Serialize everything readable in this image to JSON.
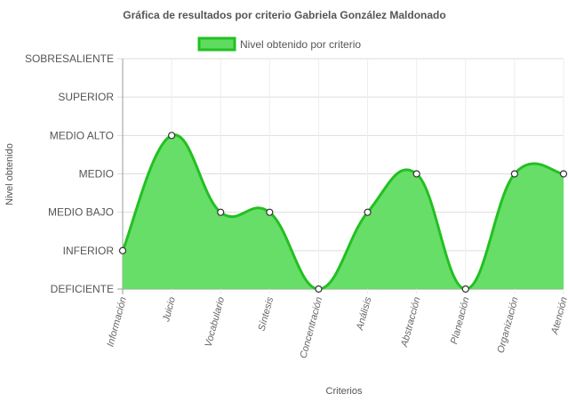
{
  "chart_data": {
    "type": "area",
    "title": "Gráfica de resultados por criterio Gabriela González Maldonado",
    "xlabel": "Criterios",
    "ylabel": "Nivel obtenido",
    "categories": [
      "Información",
      "Juicio",
      "Vocabulario",
      "Síntesis",
      "Concentración",
      "Análisis",
      "Abstracción",
      "Planeación",
      "Organización",
      "Atención"
    ],
    "y_levels": [
      "DEFICIENTE",
      "INFERIOR",
      "MEDIO BAJO",
      "MEDIO",
      "MEDIO ALTO",
      "SUPERIOR",
      "SOBRESALIENTE"
    ],
    "ylim": [
      0,
      6
    ],
    "series": [
      {
        "name": "Nivel obtenido por criterio",
        "values": [
          1,
          4,
          2,
          2,
          0,
          2,
          3,
          0,
          3,
          3
        ],
        "color": "#22c022",
        "fill": "#5fdc5f"
      }
    ],
    "legend_position": "top",
    "grid": true
  }
}
